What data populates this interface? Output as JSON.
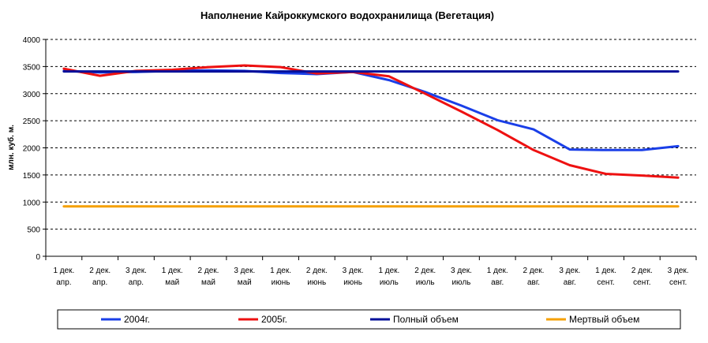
{
  "chart_data": {
    "type": "line",
    "title": "Наполнение Кайроккумского водохранилища (Вегетация)",
    "xlabel": "",
    "ylabel": "млн. куб. м.",
    "ylim": [
      0,
      4000
    ],
    "yticks": [
      "0",
      "500",
      "1000",
      "1500",
      "2000",
      "2500",
      "3000",
      "3500",
      "4000"
    ],
    "categories": [
      [
        "1 дек.",
        "апр."
      ],
      [
        "2 дек.",
        "апр."
      ],
      [
        "3 дек.",
        "апр."
      ],
      [
        "1 дек.",
        "май"
      ],
      [
        "2 дек.",
        "май"
      ],
      [
        "3 дек.",
        "май"
      ],
      [
        "1 дек.",
        "июнь"
      ],
      [
        "2 дек.",
        "июнь"
      ],
      [
        "3 дек.",
        "июнь"
      ],
      [
        "1 дек.",
        "июль"
      ],
      [
        "2 дек.",
        "июль"
      ],
      [
        "3 дек.",
        "июль"
      ],
      [
        "1 дек.",
        "авг."
      ],
      [
        "2 дек.",
        "авг."
      ],
      [
        "3 дек.",
        "авг."
      ],
      [
        "1 дек.",
        "сент."
      ],
      [
        "2 дек.",
        "сент."
      ],
      [
        "3 дек.",
        "сент."
      ]
    ],
    "grid": true,
    "legend_position": "bottom",
    "series": [
      {
        "name": "2004г.",
        "color": "#1a3fe8",
        "values": [
          3420,
          3390,
          3400,
          3420,
          3430,
          3420,
          3380,
          3360,
          3400,
          3250,
          3030,
          2780,
          2510,
          2340,
          1970,
          1960,
          1960,
          2030
        ]
      },
      {
        "name": "2005г.",
        "color": "#ee1111",
        "values": [
          3460,
          3330,
          3420,
          3440,
          3490,
          3520,
          3490,
          3370,
          3400,
          3320,
          3000,
          2670,
          2330,
          1960,
          1680,
          1520,
          1490,
          1450
        ]
      },
      {
        "name": "Полный объем",
        "color": "#000f9a",
        "values": [
          3410,
          3410,
          3410,
          3410,
          3410,
          3410,
          3410,
          3410,
          3410,
          3410,
          3410,
          3410,
          3410,
          3410,
          3410,
          3410,
          3410,
          3410
        ]
      },
      {
        "name": "Мертвый объем",
        "color": "#f5a000",
        "values": [
          920,
          920,
          920,
          920,
          920,
          920,
          920,
          920,
          920,
          920,
          920,
          920,
          920,
          920,
          920,
          920,
          920,
          920
        ]
      }
    ]
  }
}
